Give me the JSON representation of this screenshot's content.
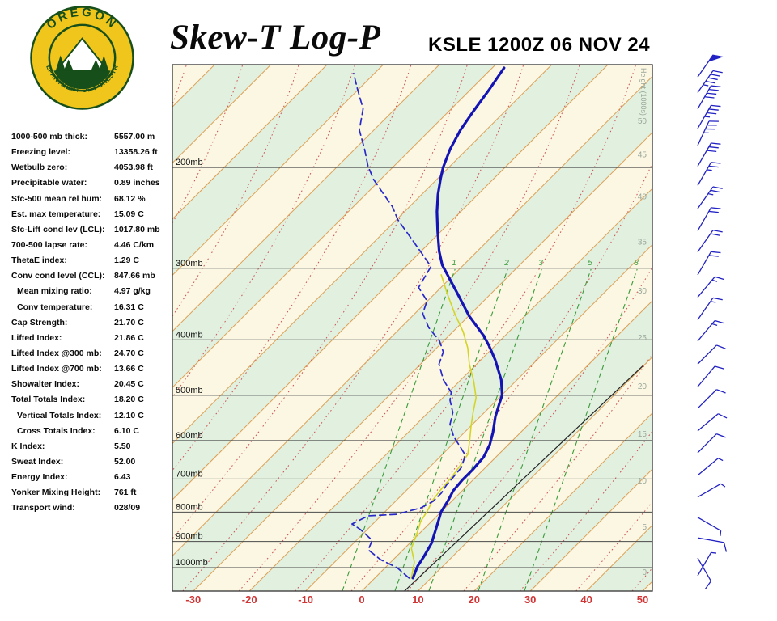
{
  "header": {
    "title": "Skew-T Log-P",
    "station": "KSLE 1200Z 06 NOV 24",
    "logo_top": "OREGON",
    "logo_bottom": "DEPARTMENT OF FORESTRY"
  },
  "indices": [
    {
      "label": "1000-500 mb thick:",
      "value": "5557.00 m",
      "indent": false
    },
    {
      "label": "Freezing level:",
      "value": "13358.26 ft",
      "indent": false
    },
    {
      "label": "Wetbulb zero:",
      "value": "4053.98 ft",
      "indent": false
    },
    {
      "label": "Precipitable water:",
      "value": "0.89 inches",
      "indent": false
    },
    {
      "label": "Sfc-500 mean rel hum:",
      "value": "68.12 %",
      "indent": false
    },
    {
      "label": "Est. max temperature:",
      "value": "15.09 C",
      "indent": false
    },
    {
      "label": "Sfc-Lift cond lev (LCL):",
      "value": "1017.80 mb",
      "indent": false
    },
    {
      "label": "700-500 lapse rate:",
      "value": "4.46 C/km",
      "indent": false
    },
    {
      "label": "ThetaE index:",
      "value": "1.29 C",
      "indent": false
    },
    {
      "label": "Conv cond level (CCL):",
      "value": "847.66 mb",
      "indent": false
    },
    {
      "label": "Mean mixing ratio:",
      "value": "4.97 g/kg",
      "indent": true
    },
    {
      "label": "Conv temperature:",
      "value": "16.31 C",
      "indent": true
    },
    {
      "label": "Cap Strength:",
      "value": "21.70 C",
      "indent": false
    },
    {
      "label": "Lifted Index:",
      "value": "21.86 C",
      "indent": false
    },
    {
      "label": "Lifted Index @300 mb:",
      "value": "24.70 C",
      "indent": false
    },
    {
      "label": "Lifted Index @700 mb:",
      "value": "13.66 C",
      "indent": false
    },
    {
      "label": "Showalter Index:",
      "value": "20.45 C",
      "indent": false
    },
    {
      "label": "Total Totals Index:",
      "value": "18.20 C",
      "indent": false
    },
    {
      "label": "Vertical Totals Index:",
      "value": "12.10 C",
      "indent": true
    },
    {
      "label": "Cross Totals Index:",
      "value": "6.10 C",
      "indent": true
    },
    {
      "label": "K Index:",
      "value": "5.50",
      "indent": false
    },
    {
      "label": "Sweat Index:",
      "value": "52.00",
      "indent": false
    },
    {
      "label": "Energy Index:",
      "value": "6.43",
      "indent": false
    },
    {
      "label": "Yonker Mixing Height:",
      "value": "761 ft",
      "indent": false
    },
    {
      "label": "Transport wind:",
      "value": "028/09",
      "indent": false
    }
  ],
  "chart_data": {
    "type": "line",
    "subtype": "skewt-log-p",
    "title": "Skew-T Log-P",
    "station": "KSLE",
    "valid_time": "1200Z 06 NOV 24",
    "pressure_lines_mb": [
      200,
      300,
      400,
      500,
      600,
      700,
      800,
      900,
      1000
    ],
    "temp_ticks_c": [
      -30,
      -20,
      -10,
      0,
      10,
      20,
      30,
      40,
      50
    ],
    "height_axis_label": "Height (1000s)",
    "height_ticks": [
      {
        "kft": "50",
        "p": 166
      },
      {
        "kft": "45",
        "p": 190
      },
      {
        "kft": "40",
        "p": 225
      },
      {
        "kft": "35",
        "p": 270
      },
      {
        "kft": "30",
        "p": 329
      },
      {
        "kft": "25",
        "p": 397
      },
      {
        "kft": "20",
        "p": 483
      },
      {
        "kft": "15",
        "p": 585
      },
      {
        "kft": "10",
        "p": 706
      },
      {
        "kft": "5",
        "p": 850
      },
      {
        "kft": "0",
        "p": 1020
      }
    ],
    "mixing_ratio_lines": [
      {
        "label": "1",
        "x300": 565
      },
      {
        "label": "2",
        "x300": 630
      },
      {
        "label": "3",
        "x300": 672
      },
      {
        "label": "5",
        "x300": 733
      },
      {
        "label": "8",
        "x300": 790
      }
    ],
    "series": [
      {
        "name": "parcel",
        "units": "p_mb,temp_c",
        "points": [
          [
            1099,
            7.6
          ],
          [
            444,
            9.9
          ]
        ]
      },
      {
        "name": "wetbulb",
        "units": "p_mb,temp_c",
        "points": [
          [
            1043,
            6.5
          ],
          [
            978,
            4.2
          ],
          [
            925,
            1.2
          ],
          [
            873,
            -0.4
          ],
          [
            831,
            -1.9
          ],
          [
            796,
            -2.6
          ],
          [
            761,
            -3.6
          ],
          [
            730,
            -4
          ],
          [
            695,
            -4.3
          ],
          [
            666,
            -4.8
          ],
          [
            634,
            -5.5
          ],
          [
            600,
            -7.6
          ],
          [
            568,
            -9.8
          ],
          [
            536,
            -12
          ],
          [
            505,
            -14.1
          ],
          [
            473,
            -17.4
          ],
          [
            441,
            -21.3
          ],
          [
            413,
            -24.5
          ],
          [
            387,
            -28.2
          ],
          [
            360,
            -32.9
          ],
          [
            331,
            -38
          ],
          [
            308,
            -42.2
          ]
        ]
      },
      {
        "name": "dewpoint",
        "units": "p_mb,temp_c",
        "points": [
          [
            1043,
            6.1
          ],
          [
            1001,
            2.2
          ],
          [
            968,
            -2.3
          ],
          [
            931,
            -6.2
          ],
          [
            896,
            -7.2
          ],
          [
            858,
            -11.2
          ],
          [
            839,
            -13.7
          ],
          [
            812,
            -12.3
          ],
          [
            807,
            -7.5
          ],
          [
            786,
            -4.3
          ],
          [
            766,
            -3.3
          ],
          [
            741,
            -3.3
          ],
          [
            718,
            -3.8
          ],
          [
            695,
            -4
          ],
          [
            668,
            -4.3
          ],
          [
            636,
            -5.8
          ],
          [
            610,
            -8.8
          ],
          [
            590,
            -11.2
          ],
          [
            562,
            -14
          ],
          [
            536,
            -15.6
          ],
          [
            510,
            -18.3
          ],
          [
            494,
            -19.5
          ],
          [
            470,
            -23.1
          ],
          [
            441,
            -26.7
          ],
          [
            420,
            -28.1
          ],
          [
            402,
            -30.7
          ],
          [
            381,
            -35
          ],
          [
            360,
            -38.6
          ],
          [
            342,
            -40.1
          ],
          [
            324,
            -44
          ],
          [
            310,
            -44.8
          ],
          [
            298,
            -45.5
          ],
          [
            281,
            -49.9
          ],
          [
            262,
            -55.2
          ],
          [
            247,
            -59.7
          ],
          [
            234,
            -63.1
          ],
          [
            221,
            -67.4
          ],
          [
            210,
            -71.2
          ],
          [
            199,
            -74.6
          ],
          [
            186,
            -78.2
          ],
          [
            172,
            -82.6
          ],
          [
            158,
            -85.7
          ],
          [
            146,
            -90.2
          ],
          [
            137,
            -93.7
          ]
        ]
      },
      {
        "name": "temperature",
        "units": "p_mb,temp_c",
        "points": [
          [
            1043,
            6.8
          ],
          [
            994,
            5.5
          ],
          [
            956,
            4.9
          ],
          [
            907,
            3.9
          ],
          [
            858,
            2.2
          ],
          [
            817,
            0.7
          ],
          [
            799,
            0
          ],
          [
            766,
            -0.7
          ],
          [
            734,
            -1.6
          ],
          [
            702,
            -1.9
          ],
          [
            673,
            -1.9
          ],
          [
            641,
            -2.2
          ],
          [
            610,
            -3.3
          ],
          [
            581,
            -4.9
          ],
          [
            545,
            -7.3
          ],
          [
            519,
            -8.8
          ],
          [
            500,
            -9.9
          ],
          [
            470,
            -12.8
          ],
          [
            434,
            -17.4
          ],
          [
            410,
            -21
          ],
          [
            393,
            -23.9
          ],
          [
            363,
            -30
          ],
          [
            331,
            -36.2
          ],
          [
            308,
            -41.1
          ],
          [
            296,
            -43.8
          ],
          [
            280,
            -46.8
          ],
          [
            258,
            -50.7
          ],
          [
            239,
            -54.2
          ],
          [
            223,
            -57.1
          ],
          [
            209,
            -59.5
          ],
          [
            200,
            -61
          ],
          [
            186,
            -63
          ],
          [
            172,
            -64.6
          ],
          [
            160,
            -65.6
          ],
          [
            146,
            -66.7
          ],
          [
            134,
            -67.9
          ]
        ]
      }
    ],
    "wind_barbs": [
      {
        "p": 139,
        "dir": 35,
        "spd": 50
      },
      {
        "p": 148,
        "dir": 35,
        "spd": 45
      },
      {
        "p": 158,
        "dir": 30,
        "spd": 40
      },
      {
        "p": 171,
        "dir": 30,
        "spd": 35
      },
      {
        "p": 183,
        "dir": 25,
        "spd": 35
      },
      {
        "p": 199,
        "dir": 30,
        "spd": 30
      },
      {
        "p": 215,
        "dir": 30,
        "spd": 25
      },
      {
        "p": 236,
        "dir": 35,
        "spd": 25
      },
      {
        "p": 258,
        "dir": 30,
        "spd": 20
      },
      {
        "p": 281,
        "dir": 35,
        "spd": 20
      },
      {
        "p": 308,
        "dir": 30,
        "spd": 20
      },
      {
        "p": 337,
        "dir": 40,
        "spd": 15
      },
      {
        "p": 369,
        "dir": 35,
        "spd": 15
      },
      {
        "p": 402,
        "dir": 40,
        "spd": 15
      },
      {
        "p": 441,
        "dir": 45,
        "spd": 10
      },
      {
        "p": 483,
        "dir": 40,
        "spd": 10
      },
      {
        "p": 527,
        "dir": 45,
        "spd": 10
      },
      {
        "p": 577,
        "dir": 50,
        "spd": 10
      },
      {
        "p": 630,
        "dir": 45,
        "spd": 10
      },
      {
        "p": 690,
        "dir": 50,
        "spd": 5
      },
      {
        "p": 753,
        "dir": 60,
        "spd": 5
      },
      {
        "p": 817,
        "dir": 120,
        "spd": 5
      },
      {
        "p": 887,
        "dir": 100,
        "spd": 10
      },
      {
        "p": 962,
        "dir": 150,
        "spd": 10
      },
      {
        "p": 1033,
        "dir": 30,
        "spd": 9
      }
    ]
  },
  "colors": {
    "band_cream": "#fbf7e3",
    "band_green": "#e2f0e0",
    "isotherm": "#dd9f55",
    "moist_adiabat": "#cc5050",
    "mixing": "#3a9b3a",
    "pressure_line": "#4a4a4a",
    "temperature": "#1414b4",
    "dewpoint": "#2828c8",
    "wetbulb": "#d4d428",
    "parcel": "#222222",
    "temp_labels": "#d03434",
    "height_labels": "#9aa79a",
    "barb": "#2222c4"
  }
}
